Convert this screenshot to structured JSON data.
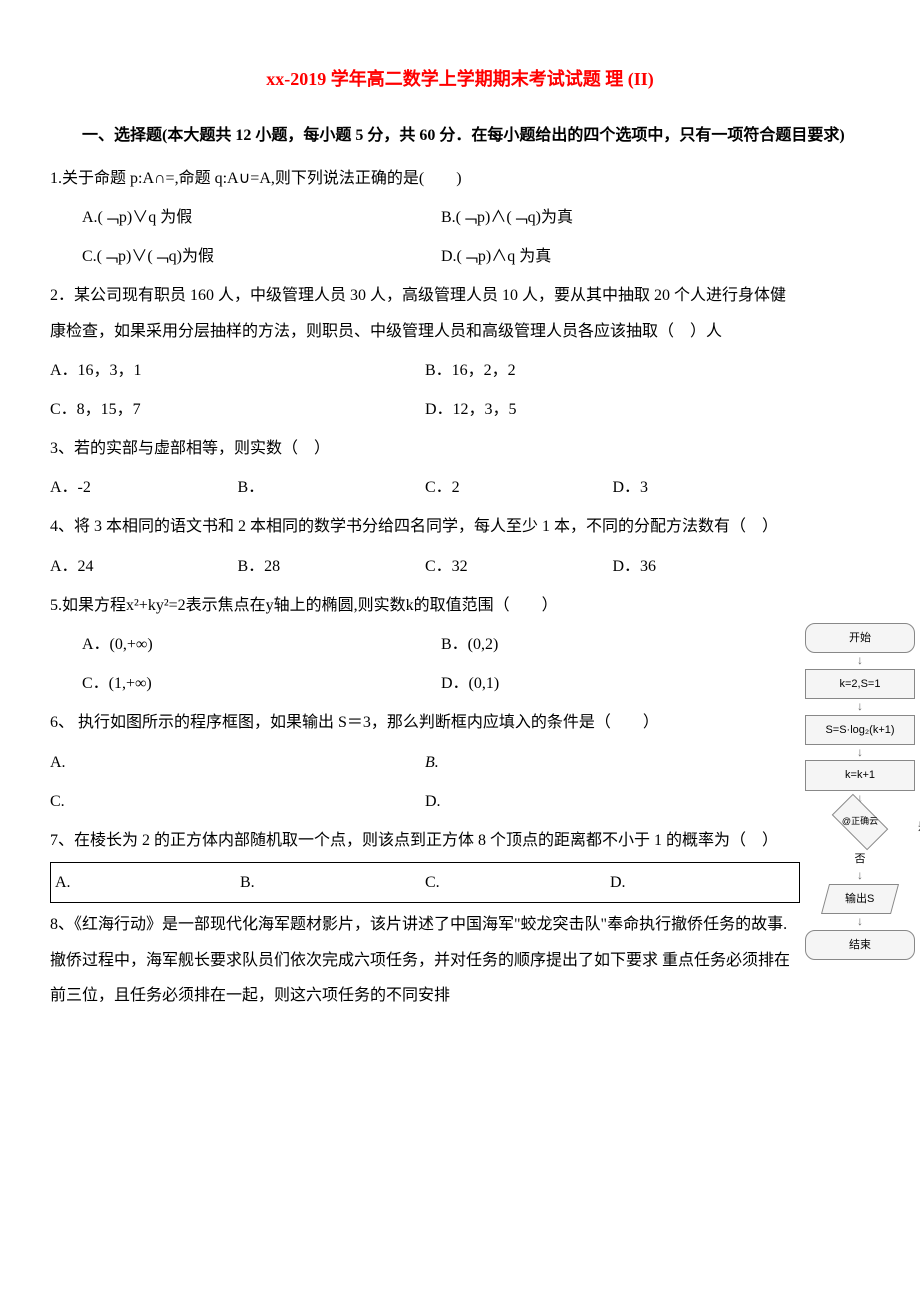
{
  "title": "xx-2019 学年高二数学上学期期末考试试题 理 (II)",
  "section_header": "一、选择题(本大题共 12 小题，每小题 5 分，共 60 分．在每小题给出的四个选项中，只有一项符合题目要求)",
  "q1": {
    "text": "1.关于命题 p:A∩=,命题 q:A∪=A,则下列说法正确的是(　　)",
    "a": "A.(﹁p)∨q 为假",
    "b": "B.(﹁p)∧(﹁q)为真",
    "c": "C.(﹁p)∨(﹁q)为假",
    "d": "D.(﹁p)∧q 为真"
  },
  "q2": {
    "text": "2．某公司现有职员 160 人，中级管理人员 30 人，高级管理人员 10 人，要从其中抽取 20 个人进行身体健康检查，如果采用分层抽样的方法，则职员、中级管理人员和高级管理人员各应该抽取（　）人",
    "a": "A．16，3，1",
    "b": "B．16，2，2",
    "c": "C．8，15，7",
    "d": "D．12，3，5"
  },
  "q3": {
    "text": "3、若的实部与虚部相等，则实数（　）",
    "a": "A．-2",
    "b": "B．",
    "c": "C．2",
    "d": "D．3"
  },
  "q4": {
    "text": "4、将 3 本相同的语文书和 2 本相同的数学书分给四名同学，每人至少 1 本，不同的分配方法数有（　）",
    "a": "A．24",
    "b": "B．28",
    "c": "C．32",
    "d": "D．36"
  },
  "q5": {
    "text": "5.如果方程x²+ky²=2表示焦点在y轴上的椭圆,则实数k的取值范围（　　）",
    "a": "A．(0,+∞)",
    "b": "B．(0,2)",
    "c": "C．(1,+∞)",
    "d": "D．(0,1)"
  },
  "q6": {
    "text": "6、 执行如图所示的程序框图，如果输出 S＝3，那么判断框内应填入的条件是（　　）",
    "a": "A.",
    "b": "B.",
    "c": "C.",
    "d": "D."
  },
  "q7": {
    "text": "7、在棱长为 2 的正方体内部随机取一个点，则该点到正方体 8 个顶点的距离都不小于 1 的概率为（　）",
    "a": "A.",
    "b": "B.",
    "c": "C.",
    "d": "D."
  },
  "q8": {
    "text": "8、《红海行动》是一部现代化海军题材影片，该片讲述了中国海军\"蛟龙突击队\"奉命执行撤侨任务的故事.撤侨过程中，海军舰长要求队员们依次完成六项任务，并对任务的顺序提出了如下要求 重点任务必须排在前三位，且任务必须排在一起，则这六项任务的不同安排"
  },
  "flowchart": {
    "start": "开始",
    "init": "k=2,S=1",
    "calc": "S=S·log₂(k+1)",
    "incr": "k=k+1",
    "watermark": "@正确云",
    "yes": "是",
    "no": "否",
    "output": "输出S",
    "end": "结束"
  }
}
